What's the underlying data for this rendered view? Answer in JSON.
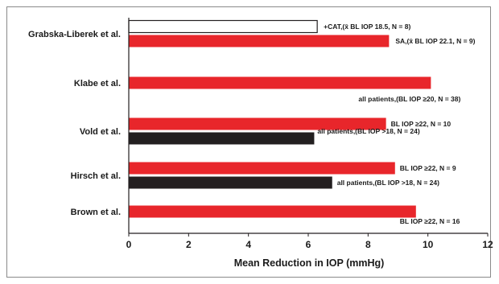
{
  "chart_data": {
    "type": "bar",
    "orientation": "horizontal",
    "xlabel": "Mean Reduction in IOP (mmHg)",
    "xlim": [
      0,
      12
    ],
    "xticks": [
      0,
      2,
      4,
      6,
      8,
      10,
      12
    ],
    "grid": false,
    "studies": [
      {
        "name": "Grabska-Liberek et al.",
        "bars": [
          {
            "value": 6.3,
            "label": "+CAT,(x̄ BL IOP 18.5, N = 8)",
            "color": "#ffffff"
          },
          {
            "value": 8.7,
            "label": "SA,(x̄ BL IOP 22.1, N = 9)",
            "color": "#e8262b"
          }
        ]
      },
      {
        "name": "Klabe et al.",
        "bars": [
          {
            "value": 10.1,
            "label": "all patients,(BL IOP ≥20, N = 38)",
            "color": "#e8262b"
          }
        ]
      },
      {
        "name": "Vold et al.",
        "bars": [
          {
            "value": 8.6,
            "label": "BL IOP ≥22, N = 10",
            "color": "#e8262b"
          },
          {
            "value": 6.2,
            "label": "all patients,(BL IOP >18, N = 24)",
            "color": "#231f20"
          }
        ]
      },
      {
        "name": "Hirsch et al.",
        "bars": [
          {
            "value": 8.9,
            "label": "BL IOP ≥22, N = 9",
            "color": "#e8262b"
          },
          {
            "value": 6.8,
            "label": "all patients,(BL IOP >18, N = 24)",
            "color": "#231f20"
          }
        ]
      },
      {
        "name": "Brown et al.",
        "bars": [
          {
            "value": 9.6,
            "label": "BL IOP ≥22, N = 16",
            "color": "#e8262b"
          }
        ]
      }
    ]
  }
}
